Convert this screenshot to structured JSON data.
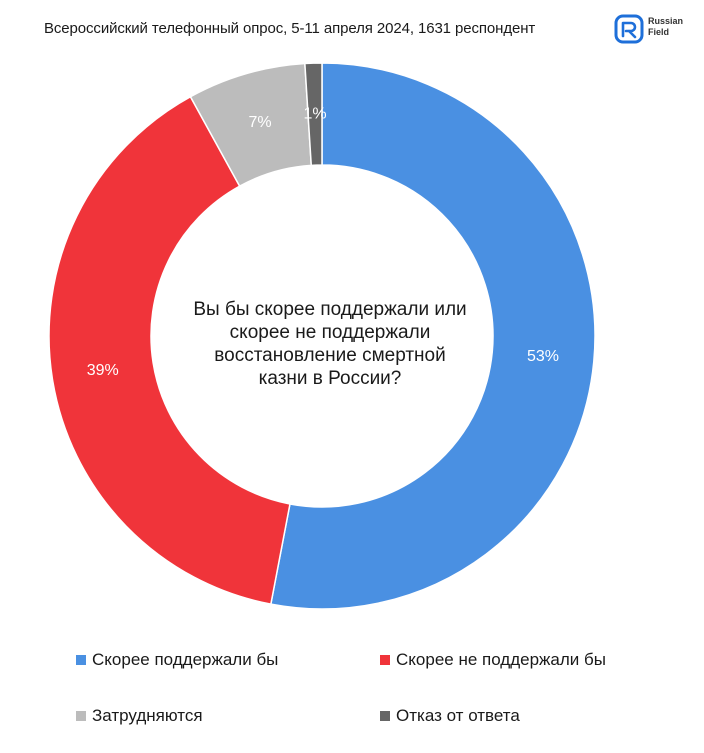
{
  "header": {
    "subtitle": "Всероссийский телефонный опрос, 5-11 апреля 2024, 1631 респондент",
    "logo": {
      "line1": "Russian",
      "line2": "Field",
      "color": "#1e6fd9"
    }
  },
  "chart_data": {
    "type": "pie",
    "variant": "donut",
    "title": "Вы бы скорее поддержали или скорее не поддержали восстановление смертной казни в России?",
    "title_lines": [
      "Вы бы скорее поддержали или",
      "скорее не поддержали",
      "восстановление смертной",
      "казни в России?"
    ],
    "categories": [
      "Скорее поддержали бы",
      "Скорее не поддержали бы",
      "Затрудняются",
      "Отказ от ответа"
    ],
    "values": [
      53,
      39,
      7,
      1
    ],
    "labels": [
      "53%",
      "39%",
      "7%",
      "1%"
    ],
    "colors": [
      "#4a90e2",
      "#f0343a",
      "#bcbcbc",
      "#666666"
    ],
    "start_angle_deg": 0,
    "direction": "clockwise",
    "legend_position": "bottom"
  }
}
